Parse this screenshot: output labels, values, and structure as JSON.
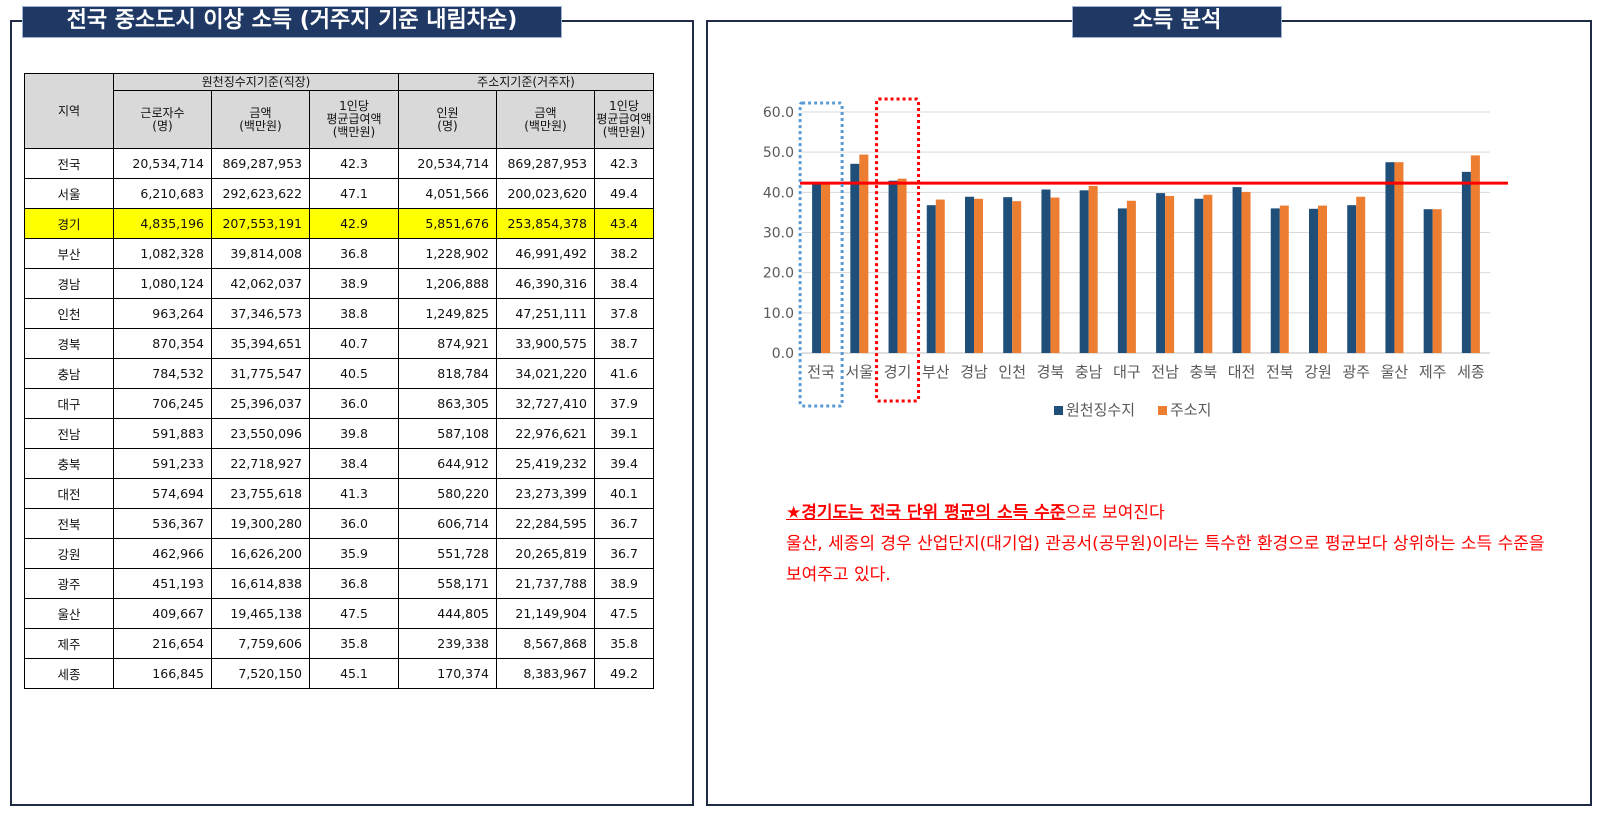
{
  "left_panel": {
    "title": "전국 중소도시 이상 소득 (거주지 기준 내림차순)"
  },
  "right_panel": {
    "title": "소득 분석"
  },
  "table": {
    "group_headers": {
      "region": "지역",
      "withholding": "원천징수지기준(직장)",
      "address": "주소지기준(거주자)"
    },
    "sub_headers": {
      "workers": [
        "근로자수",
        "(명)"
      ],
      "amount": [
        "금액",
        "(백만원)"
      ],
      "avg": [
        "1인당",
        "평균급여액",
        "(백만원)"
      ],
      "persons": [
        "인원",
        "(명)"
      ]
    },
    "rows": [
      {
        "region": "전국",
        "workers": "20,534,714",
        "amount_w": "869,287,953",
        "avg_w": "42.3",
        "persons": "20,534,714",
        "amount_a": "869,287,953",
        "avg_a": "42.3"
      },
      {
        "region": "서울",
        "workers": "6,210,683",
        "amount_w": "292,623,622",
        "avg_w": "47.1",
        "persons": "4,051,566",
        "amount_a": "200,023,620",
        "avg_a": "49.4"
      },
      {
        "region": "경기",
        "workers": "4,835,196",
        "amount_w": "207,553,191",
        "avg_w": "42.9",
        "persons": "5,851,676",
        "amount_a": "253,854,378",
        "avg_a": "43.4",
        "highlight": true
      },
      {
        "region": "부산",
        "workers": "1,082,328",
        "amount_w": "39,814,008",
        "avg_w": "36.8",
        "persons": "1,228,902",
        "amount_a": "46,991,492",
        "avg_a": "38.2"
      },
      {
        "region": "경남",
        "workers": "1,080,124",
        "amount_w": "42,062,037",
        "avg_w": "38.9",
        "persons": "1,206,888",
        "amount_a": "46,390,316",
        "avg_a": "38.4"
      },
      {
        "region": "인천",
        "workers": "963,264",
        "amount_w": "37,346,573",
        "avg_w": "38.8",
        "persons": "1,249,825",
        "amount_a": "47,251,111",
        "avg_a": "37.8"
      },
      {
        "region": "경북",
        "workers": "870,354",
        "amount_w": "35,394,651",
        "avg_w": "40.7",
        "persons": "874,921",
        "amount_a": "33,900,575",
        "avg_a": "38.7"
      },
      {
        "region": "충남",
        "workers": "784,532",
        "amount_w": "31,775,547",
        "avg_w": "40.5",
        "persons": "818,784",
        "amount_a": "34,021,220",
        "avg_a": "41.6"
      },
      {
        "region": "대구",
        "workers": "706,245",
        "amount_w": "25,396,037",
        "avg_w": "36.0",
        "persons": "863,305",
        "amount_a": "32,727,410",
        "avg_a": "37.9"
      },
      {
        "region": "전남",
        "workers": "591,883",
        "amount_w": "23,550,096",
        "avg_w": "39.8",
        "persons": "587,108",
        "amount_a": "22,976,621",
        "avg_a": "39.1"
      },
      {
        "region": "충북",
        "workers": "591,233",
        "amount_w": "22,718,927",
        "avg_w": "38.4",
        "persons": "644,912",
        "amount_a": "25,419,232",
        "avg_a": "39.4"
      },
      {
        "region": "대전",
        "workers": "574,694",
        "amount_w": "23,755,618",
        "avg_w": "41.3",
        "persons": "580,220",
        "amount_a": "23,273,399",
        "avg_a": "40.1"
      },
      {
        "region": "전북",
        "workers": "536,367",
        "amount_w": "19,300,280",
        "avg_w": "36.0",
        "persons": "606,714",
        "amount_a": "22,284,595",
        "avg_a": "36.7"
      },
      {
        "region": "강원",
        "workers": "462,966",
        "amount_w": "16,626,200",
        "avg_w": "35.9",
        "persons": "551,728",
        "amount_a": "20,265,819",
        "avg_a": "36.7"
      },
      {
        "region": "광주",
        "workers": "451,193",
        "amount_w": "16,614,838",
        "avg_w": "36.8",
        "persons": "558,171",
        "amount_a": "21,737,788",
        "avg_a": "38.9"
      },
      {
        "region": "울산",
        "workers": "409,667",
        "amount_w": "19,465,138",
        "avg_w": "47.5",
        "persons": "444,805",
        "amount_a": "21,149,904",
        "avg_a": "47.5"
      },
      {
        "region": "제주",
        "workers": "216,654",
        "amount_w": "7,759,606",
        "avg_w": "35.8",
        "persons": "239,338",
        "amount_a": "8,567,868",
        "avg_a": "35.8"
      },
      {
        "region": "세종",
        "workers": "166,845",
        "amount_w": "7,520,150",
        "avg_w": "45.1",
        "persons": "170,374",
        "amount_a": "8,383,967",
        "avg_a": "49.2"
      }
    ]
  },
  "chart_data": {
    "type": "bar",
    "categories": [
      "전국",
      "서울",
      "경기",
      "부산",
      "경남",
      "인천",
      "경북",
      "충남",
      "대구",
      "전남",
      "충북",
      "대전",
      "전북",
      "강원",
      "광주",
      "울산",
      "제주",
      "세종"
    ],
    "series": [
      {
        "name": "원천징수지",
        "color": "#1f4e79",
        "values": [
          42.3,
          47.1,
          42.9,
          36.8,
          38.9,
          38.8,
          40.7,
          40.5,
          36.0,
          39.8,
          38.4,
          41.3,
          36.0,
          35.9,
          36.8,
          47.5,
          35.8,
          45.1
        ]
      },
      {
        "name": "주소지",
        "color": "#ed7d31",
        "values": [
          42.3,
          49.4,
          43.4,
          38.2,
          38.4,
          37.8,
          38.7,
          41.6,
          37.9,
          39.1,
          39.4,
          40.1,
          36.7,
          36.7,
          38.9,
          47.5,
          35.8,
          49.2
        ]
      }
    ],
    "yticks": [
      "0.0",
      "10.0",
      "20.0",
      "30.0",
      "40.0",
      "50.0",
      "60.0"
    ],
    "ylim": [
      0,
      60
    ],
    "reference_line": {
      "value": 42.3,
      "color": "#ff0000"
    },
    "highlight_boxes": [
      {
        "category": "전국",
        "color": "#5b9bd5"
      },
      {
        "category": "경기",
        "color": "#ff0000"
      }
    ],
    "grid": true,
    "legend_position": "bottom"
  },
  "analysis": {
    "line1_star": "★경기도는 전국 단위 평균의 소득 수준",
    "line1_rest": "으로 보여진다",
    "line2": "울산, 세종의 경우 산업단지(대기업) 관공서(공무원)이라는 특수한 환경으로 평균보다 상위하는 소득 수준을 보여주고 있다."
  }
}
